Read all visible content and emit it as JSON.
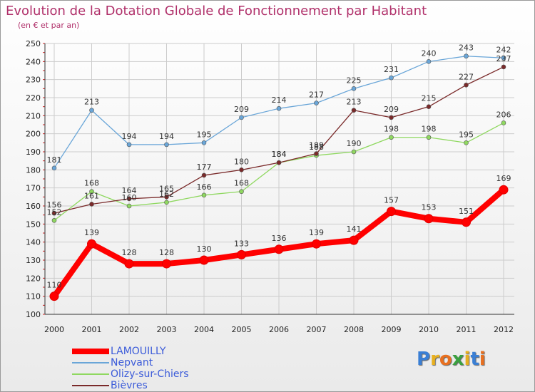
{
  "title": "Evolution de la Dotation Globale de Fonctionnement par Habitant",
  "subtitle": "(en € et par an)",
  "chart_data": {
    "type": "line",
    "title": "Evolution de la Dotation Globale de Fonctionnement par Habitant",
    "subtitle": "(en € et par an)",
    "xlabel": "",
    "ylabel": "",
    "ylim": [
      100,
      250
    ],
    "y_ticks": [
      100,
      110,
      120,
      130,
      140,
      150,
      160,
      170,
      180,
      190,
      200,
      210,
      220,
      230,
      240,
      250
    ],
    "grid": true,
    "legend_position": "bottom-left",
    "x": [
      "2000",
      "2001",
      "2002",
      "2003",
      "2004",
      "2005",
      "2006",
      "2007",
      "2008",
      "2009",
      "2010",
      "2011",
      "2012"
    ],
    "series": [
      {
        "name": "LAMOUILLY",
        "color": "#ff0000",
        "values": [
          110,
          139,
          128,
          128,
          130,
          133,
          136,
          139,
          141,
          157,
          153,
          151,
          169
        ]
      },
      {
        "name": "Nepvant",
        "color": "#6aa6d8",
        "values": [
          181,
          213,
          194,
          194,
          195,
          209,
          214,
          217,
          225,
          231,
          240,
          243,
          242
        ]
      },
      {
        "name": "Olizy-sur-Chiers",
        "color": "#8fd860",
        "values": [
          152,
          168,
          160,
          162,
          166,
          168,
          184,
          188,
          190,
          198,
          198,
          195,
          206
        ]
      },
      {
        "name": "Bièvres",
        "color": "#7a2a2a",
        "values": [
          156,
          161,
          164,
          165,
          177,
          180,
          184,
          189,
          213,
          209,
          215,
          227,
          237
        ]
      }
    ]
  },
  "logo": {
    "letters": [
      "P",
      "r",
      "o",
      "x",
      "i",
      "t",
      "i"
    ],
    "colors": [
      "#3a7fd5",
      "#e8b020",
      "#e87020",
      "#3aa040",
      "#e8b020",
      "#3a7fd5",
      "#e87020"
    ]
  }
}
